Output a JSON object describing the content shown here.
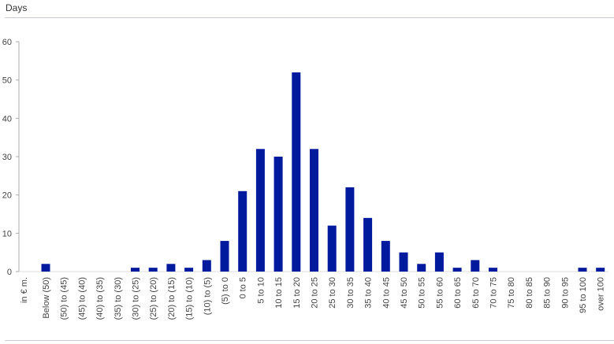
{
  "chart_data": {
    "type": "bar",
    "title": "Days",
    "xlabel": "in € m.",
    "ylabel": "",
    "ylim": [
      0,
      60
    ],
    "yticks": [
      0,
      10,
      20,
      30,
      40,
      50,
      60
    ],
    "grid": false,
    "bar_color": "#001a9e",
    "categories": [
      "Below (50)",
      "(50) to (45)",
      "(45) to (40)",
      "(40) to (35)",
      "(35) to (30)",
      "(30) to (25)",
      "(25) to (20)",
      "(20) to (15)",
      "(15) to (10)",
      "(10) to (5)",
      "(5) to 0",
      "0 to 5",
      "5 to 10",
      "10 to 15",
      "15 to 20",
      "20 to 25",
      "25 to 30",
      "30 to 35",
      "35 to 40",
      "40 to 45",
      "45 to 50",
      "50 to 55",
      "55 to 60",
      "60 to 65",
      "65 to 70",
      "70 to 75",
      "75 to 80",
      "80 to 85",
      "85 to 90",
      "90 to 95",
      "95 to 100",
      "over 100"
    ],
    "values": [
      2,
      0,
      0,
      0,
      0,
      1,
      1,
      2,
      1,
      3,
      8,
      21,
      32,
      30,
      52,
      32,
      12,
      22,
      14,
      8,
      5,
      2,
      5,
      1,
      3,
      1,
      0,
      0,
      0,
      0,
      1,
      1
    ]
  }
}
